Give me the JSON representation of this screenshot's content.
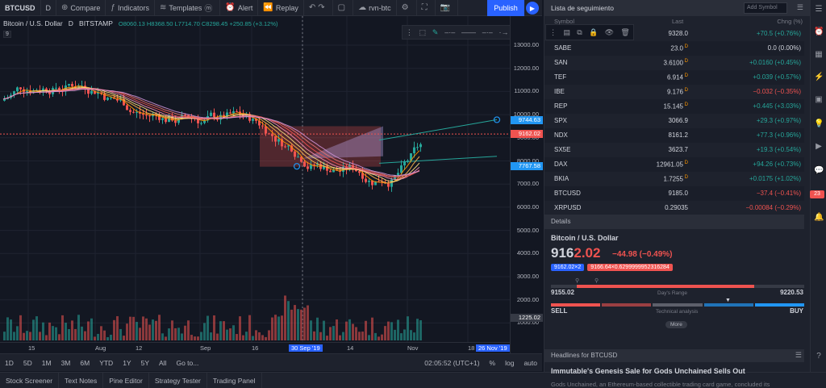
{
  "toolbar": {
    "symbol": "BTCUSD",
    "interval": "D",
    "compare": "Compare",
    "indicators": "Indicators",
    "templates": "Templates",
    "alert": "Alert",
    "replay": "Replay",
    "layout_name": "rvn-btc",
    "publish": "Publish"
  },
  "legend": {
    "title": "Bitcoin / U.S. Dollar",
    "interval": "D",
    "exchange": "BITSTAMP",
    "ohlc": "O8060.13 H8368.50 L7714.70 C8298.45 +250.85 (+3.12%)",
    "sub": "9"
  },
  "chart_data": {
    "type": "candlestick",
    "price_ticks": [
      "13000.00",
      "12000.00",
      "11000.00",
      "10000.00",
      "9000.00",
      "8000.00",
      "7000.00",
      "6000.00",
      "5000.00",
      "4000.00",
      "3000.00",
      "2000.00",
      "1000.00"
    ],
    "price_labels": [
      {
        "text": "9744.63",
        "color": "#2196f3",
        "value": 9744.63
      },
      {
        "text": "9162.02",
        "color": "#ef5350",
        "value": 9162.02
      },
      {
        "text": "7767.58",
        "color": "#2196f3",
        "value": 7767.58
      },
      {
        "text": "1225.02",
        "color": "#363a45",
        "value": 1225.02
      }
    ],
    "time_ticks": [
      "15",
      "Aug",
      "12",
      "Sep",
      "16",
      "30 Sep '19",
      "14",
      "Nov",
      "18",
      "26 Nov '19"
    ],
    "volume_labels": [
      "1000.00"
    ]
  },
  "range_bar": {
    "ranges": [
      "1D",
      "5D",
      "1M",
      "3M",
      "6M",
      "YTD",
      "1Y",
      "5Y",
      "All"
    ],
    "goto": "Go to...",
    "clock": "02:05:52 (UTC+1)",
    "pct": "%",
    "log": "log",
    "auto": "auto"
  },
  "bottom_tabs": [
    "Stock Screener",
    "Text Notes",
    "Pine Editor",
    "Strategy Tester",
    "Trading Panel"
  ],
  "watchlist": {
    "title": "Lista de seguimiento",
    "add_placeholder": "Add Symbol",
    "col_symbol": "Symbol",
    "col_last": "Last",
    "col_chg": "Chng (%)",
    "rows": [
      {
        "symbol": "",
        "last": "9328.0",
        "chg": "+70.5 (+0.76%)",
        "dir": "pos",
        "d": false
      },
      {
        "symbol": "SABE",
        "last": "23.0",
        "chg": "0.0 (0.00%)",
        "dir": "neu",
        "d": true
      },
      {
        "symbol": "SAN",
        "last": "3.6100",
        "chg": "+0.0160 (+0.45%)",
        "dir": "pos",
        "d": true
      },
      {
        "symbol": "TEF",
        "last": "6.914",
        "chg": "+0.039 (+0.57%)",
        "dir": "pos",
        "d": true
      },
      {
        "symbol": "IBE",
        "last": "9.176",
        "chg": "−0.032 (−0.35%)",
        "dir": "neg",
        "d": true
      },
      {
        "symbol": "REP",
        "last": "15.145",
        "chg": "+0.445 (+3.03%)",
        "dir": "pos",
        "d": true
      },
      {
        "symbol": "SPX",
        "last": "3066.9",
        "chg": "+29.3 (+0.97%)",
        "dir": "pos",
        "d": false
      },
      {
        "symbol": "NDX",
        "last": "8161.2",
        "chg": "+77.3 (+0.96%)",
        "dir": "pos",
        "d": false
      },
      {
        "symbol": "SX5E",
        "last": "3623.7",
        "chg": "+19.3 (+0.54%)",
        "dir": "pos",
        "d": false
      },
      {
        "symbol": "DAX",
        "last": "12961.05",
        "chg": "+94.26 (+0.73%)",
        "dir": "pos",
        "d": true
      },
      {
        "symbol": "BKIA",
        "last": "1.7255",
        "chg": "+0.0175 (+1.02%)",
        "dir": "pos",
        "d": true
      },
      {
        "symbol": "BTCUSD",
        "last": "9185.0",
        "chg": "−37.4 (−0.41%)",
        "dir": "neg",
        "d": false
      },
      {
        "symbol": "XRPUSD",
        "last": "0.29035",
        "chg": "−0.00084 (−0.29%)",
        "dir": "neg",
        "d": false
      }
    ]
  },
  "details": {
    "header": "Details",
    "name": "Bitcoin / U.S. Dollar",
    "price_main": "916",
    "price_dec": "2.02",
    "change": "−44.98 (−0.49%)",
    "badge1": "9162.02×2",
    "badge2": "9166.64×0.6299999952316284",
    "day_low": "9155.02",
    "day_high": "9220.53",
    "day_range_label": "Day's Range",
    "sell": "SELL",
    "buy": "BUY",
    "tech_label": "Technical analysis",
    "more": "More"
  },
  "headlines": {
    "header": "Headlines for BTCUSD",
    "title": "Immutable's Genesis Sale for Gods Unchained Sells Out",
    "text": "Gods Unchained, an Ethereum-based collectible trading card game, concluded its"
  },
  "sidebar_badge": "23",
  "colors": {
    "up": "#26a69a",
    "down": "#ef5350",
    "accent": "#2962ff",
    "bg": "#131722"
  }
}
